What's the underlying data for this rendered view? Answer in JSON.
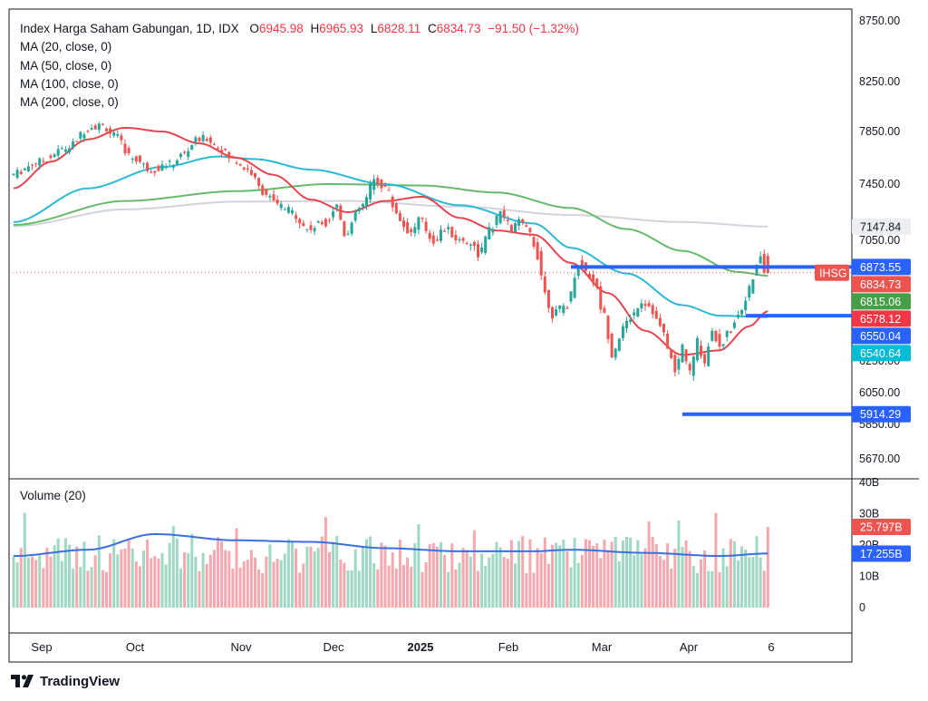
{
  "header": {
    "symbol_title": "Index Harga Saham Gabungan, 1D, IDX",
    "open_label": "O",
    "open": "6945.98",
    "high_label": "H",
    "high": "6965.93",
    "low_label": "L",
    "low": "6828.11",
    "close_label": "C",
    "close": "6834.73",
    "change": "−91.50 (−1.32%)",
    "indicators": [
      "MA (20, close, 0)",
      "MA (50, close, 0)",
      "MA (100, close, 0)",
      "MA (200, close, 0)"
    ]
  },
  "volume_title": "Volume (20)",
  "brand": {
    "name": "TradingView"
  },
  "colors": {
    "up": "#26a69a",
    "down": "#ef5350",
    "ma20": "#e5454f",
    "ma50": "#2bbad5",
    "ma100": "#66bb6a",
    "ma200": "#d1d4dc",
    "level": "#2962ff",
    "vol_up": "#9fd8c3",
    "vol_down": "#f5a8ad",
    "vol_ma": "#3a6fe0"
  },
  "chart_data": {
    "type": "candlestick",
    "price_axis_ticks": [
      "8750.00",
      "8250.00",
      "7850.00",
      "7450.00",
      "7050.00",
      "6250.00",
      "6050.00",
      "5850.00",
      "5670.00"
    ],
    "price_axis_tick_values": [
      8750,
      8250,
      7850,
      7450,
      7050,
      6250,
      6050,
      5850,
      5670
    ],
    "price_tags": [
      {
        "text": "7147.84",
        "value": 7147.84,
        "bg": "#eceef2",
        "fg": "#131722"
      },
      {
        "text": "6873.55",
        "value": 6873.55,
        "bg": "#2962ff",
        "fg": "#ffffff"
      },
      {
        "text": "6834.73",
        "value": 6834.73,
        "bg": "#ef5350",
        "fg": "#ffffff"
      },
      {
        "text": "6815.06",
        "value": 6815.06,
        "bg": "#43a047",
        "fg": "#ffffff"
      },
      {
        "text": "6578.12",
        "value": 6578.12,
        "bg": "#f23645",
        "fg": "#ffffff"
      },
      {
        "text": "6550.04",
        "value": 6550.04,
        "bg": "#2962ff",
        "fg": "#ffffff"
      },
      {
        "text": "6540.64",
        "value": 6540.64,
        "bg": "#00bcd4",
        "fg": "#ffffff"
      },
      {
        "text": "5914.29",
        "value": 5914.29,
        "bg": "#2962ff",
        "fg": "#ffffff"
      }
    ],
    "symbol_tag": "IHSG",
    "time_axis_labels": [
      {
        "label": "Sep",
        "bold": false
      },
      {
        "label": "Oct",
        "bold": false
      },
      {
        "label": "Nov",
        "bold": false
      },
      {
        "label": "Dec",
        "bold": false
      },
      {
        "label": "2025",
        "bold": true
      },
      {
        "label": "Feb",
        "bold": false
      },
      {
        "label": "Mar",
        "bold": false
      },
      {
        "label": "Apr",
        "bold": false
      },
      {
        "label": "6",
        "bold": false
      }
    ],
    "volume_axis_ticks": [
      "40B",
      "30B",
      "20B",
      "10B",
      "0"
    ],
    "volume_axis_tick_values": [
      40,
      30,
      20,
      10,
      0
    ],
    "volume_tags": [
      {
        "text": "25.797B",
        "value": 25.797,
        "bg": "#ef5350",
        "fg": "#ffffff"
      },
      {
        "text": "17.255B",
        "value": 17.255,
        "bg": "#2962ff",
        "fg": "#ffffff"
      }
    ],
    "horizontal_levels": [
      {
        "value": 6873.55,
        "from_session": 150,
        "to_session": 203
      },
      {
        "value": 6550.04,
        "from_session": 197,
        "to_session": 203
      },
      {
        "value": 5914.29,
        "from_session": 180,
        "to_session": 203
      }
    ],
    "last_close_line": 6834.73,
    "ma_series": {
      "ma20": [
        [
          0,
          7420
        ],
        [
          10,
          7620
        ],
        [
          20,
          7790
        ],
        [
          30,
          7880
        ],
        [
          40,
          7850
        ],
        [
          50,
          7760
        ],
        [
          60,
          7650
        ],
        [
          70,
          7520
        ],
        [
          80,
          7340
        ],
        [
          90,
          7250
        ],
        [
          100,
          7330
        ],
        [
          110,
          7360
        ],
        [
          120,
          7210
        ],
        [
          130,
          7120
        ],
        [
          140,
          7090
        ],
        [
          150,
          6900
        ],
        [
          160,
          6700
        ],
        [
          170,
          6450
        ],
        [
          180,
          6290
        ],
        [
          190,
          6320
        ],
        [
          198,
          6480
        ],
        [
          203,
          6580
        ]
      ],
      "ma50": [
        [
          0,
          7180
        ],
        [
          20,
          7420
        ],
        [
          40,
          7580
        ],
        [
          55,
          7660
        ],
        [
          65,
          7640
        ],
        [
          80,
          7560
        ],
        [
          100,
          7450
        ],
        [
          120,
          7300
        ],
        [
          140,
          7170
        ],
        [
          150,
          7000
        ],
        [
          165,
          6830
        ],
        [
          180,
          6620
        ],
        [
          190,
          6550
        ],
        [
          203,
          6541
        ]
      ],
      "ma100": [
        [
          0,
          7160
        ],
        [
          30,
          7330
        ],
        [
          60,
          7400
        ],
        [
          85,
          7450
        ],
        [
          110,
          7440
        ],
        [
          130,
          7390
        ],
        [
          150,
          7280
        ],
        [
          165,
          7130
        ],
        [
          180,
          6980
        ],
        [
          195,
          6840
        ],
        [
          203,
          6815
        ]
      ],
      "ma200": [
        [
          0,
          7150
        ],
        [
          30,
          7270
        ],
        [
          60,
          7325
        ],
        [
          90,
          7330
        ],
        [
          120,
          7290
        ],
        [
          150,
          7230
        ],
        [
          180,
          7180
        ],
        [
          203,
          7148
        ]
      ]
    },
    "volume_ma": [
      [
        0,
        16.5
      ],
      [
        20,
        18.5
      ],
      [
        38,
        23.5
      ],
      [
        60,
        21.5
      ],
      [
        80,
        21
      ],
      [
        100,
        19
      ],
      [
        120,
        18
      ],
      [
        140,
        18
      ],
      [
        150,
        18.5
      ],
      [
        170,
        17.5
      ],
      [
        190,
        16.5
      ],
      [
        203,
        17.3
      ]
    ]
  }
}
